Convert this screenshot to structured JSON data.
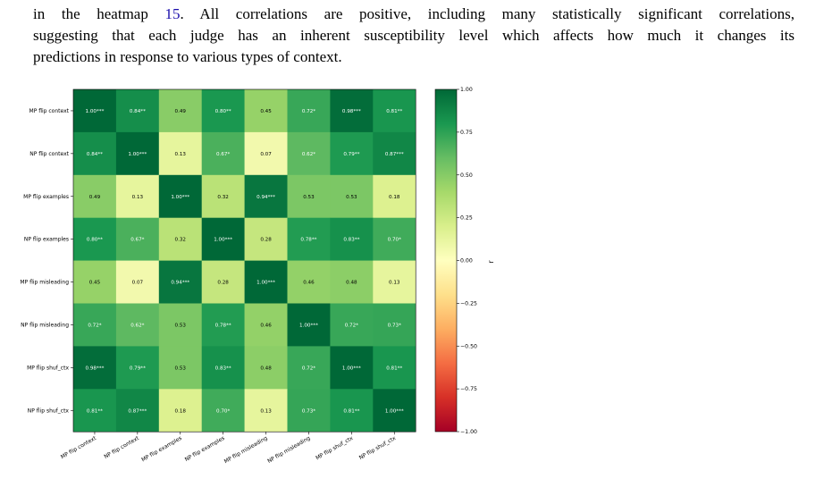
{
  "paragraph": {
    "line1_pre": "in the heatmap ",
    "line1_ref": "15",
    "line1_post": ". All correlations are positive, including many statistically significant correlations,",
    "line2": "suggesting that each judge has an inherent susceptibility level which affects how much it changes its",
    "line3": "predictions in response to various types of context."
  },
  "colors": {
    "low": "#a50026",
    "mid": "#ffffbf",
    "high": "#006837"
  },
  "chart_data": {
    "type": "heatmap",
    "title": "",
    "labels": [
      "MP flip context",
      "NP flip context",
      "MP flip examples",
      "NP flip examples",
      "MP flip misleading",
      "NP flip misleading",
      "MP flip shuf_ctx",
      "NP flip shuf_ctx"
    ],
    "values": [
      [
        1.0,
        0.84,
        0.49,
        0.8,
        0.45,
        0.72,
        0.98,
        0.81
      ],
      [
        0.84,
        1.0,
        0.13,
        0.67,
        0.07,
        0.62,
        0.79,
        0.87
      ],
      [
        0.49,
        0.13,
        1.0,
        0.32,
        0.94,
        0.53,
        0.53,
        0.18
      ],
      [
        0.8,
        0.67,
        0.32,
        1.0,
        0.28,
        0.78,
        0.83,
        0.7
      ],
      [
        0.45,
        0.07,
        0.94,
        0.28,
        1.0,
        0.46,
        0.48,
        0.13
      ],
      [
        0.72,
        0.62,
        0.53,
        0.78,
        0.46,
        1.0,
        0.72,
        0.73
      ],
      [
        0.98,
        0.79,
        0.53,
        0.83,
        0.48,
        0.72,
        1.0,
        0.81
      ],
      [
        0.81,
        0.87,
        0.18,
        0.7,
        0.13,
        0.73,
        0.81,
        1.0
      ]
    ],
    "annotations": [
      [
        "1.00***",
        "0.84**",
        "0.49",
        "0.80**",
        "0.45",
        "0.72*",
        "0.98***",
        "0.81**"
      ],
      [
        "0.84**",
        "1.00***",
        "0.13",
        "0.67*",
        "0.07",
        "0.62*",
        "0.79**",
        "0.87***"
      ],
      [
        "0.49",
        "0.13",
        "1.00***",
        "0.32",
        "0.94***",
        "0.53",
        "0.53",
        "0.18"
      ],
      [
        "0.80**",
        "0.67*",
        "0.32",
        "1.00***",
        "0.28",
        "0.78**",
        "0.83**",
        "0.70*"
      ],
      [
        "0.45",
        "0.07",
        "0.94***",
        "0.28",
        "1.00***",
        "0.46",
        "0.48",
        "0.13"
      ],
      [
        "0.72*",
        "0.62*",
        "0.53",
        "0.78**",
        "0.46",
        "1.00***",
        "0.72*",
        "0.73*"
      ],
      [
        "0.98***",
        "0.79**",
        "0.53",
        "0.83**",
        "0.48",
        "0.72*",
        "1.00***",
        "0.81**"
      ],
      [
        "0.81**",
        "0.87***",
        "0.18",
        "0.70*",
        "0.13",
        "0.73*",
        "0.81**",
        "1.00***"
      ]
    ],
    "colorbar": {
      "label": "r",
      "range": [
        -1.0,
        1.0
      ],
      "ticks": [
        1.0,
        0.75,
        0.5,
        0.25,
        0.0,
        -0.25,
        -0.5,
        -0.75,
        -1.0
      ],
      "tick_labels": [
        "1.00",
        "0.75",
        "0.50",
        "0.25",
        "0.00",
        "−0.25",
        "−0.50",
        "−0.75",
        "−1.00"
      ]
    },
    "grid": false,
    "legend": "colorbar-right"
  }
}
